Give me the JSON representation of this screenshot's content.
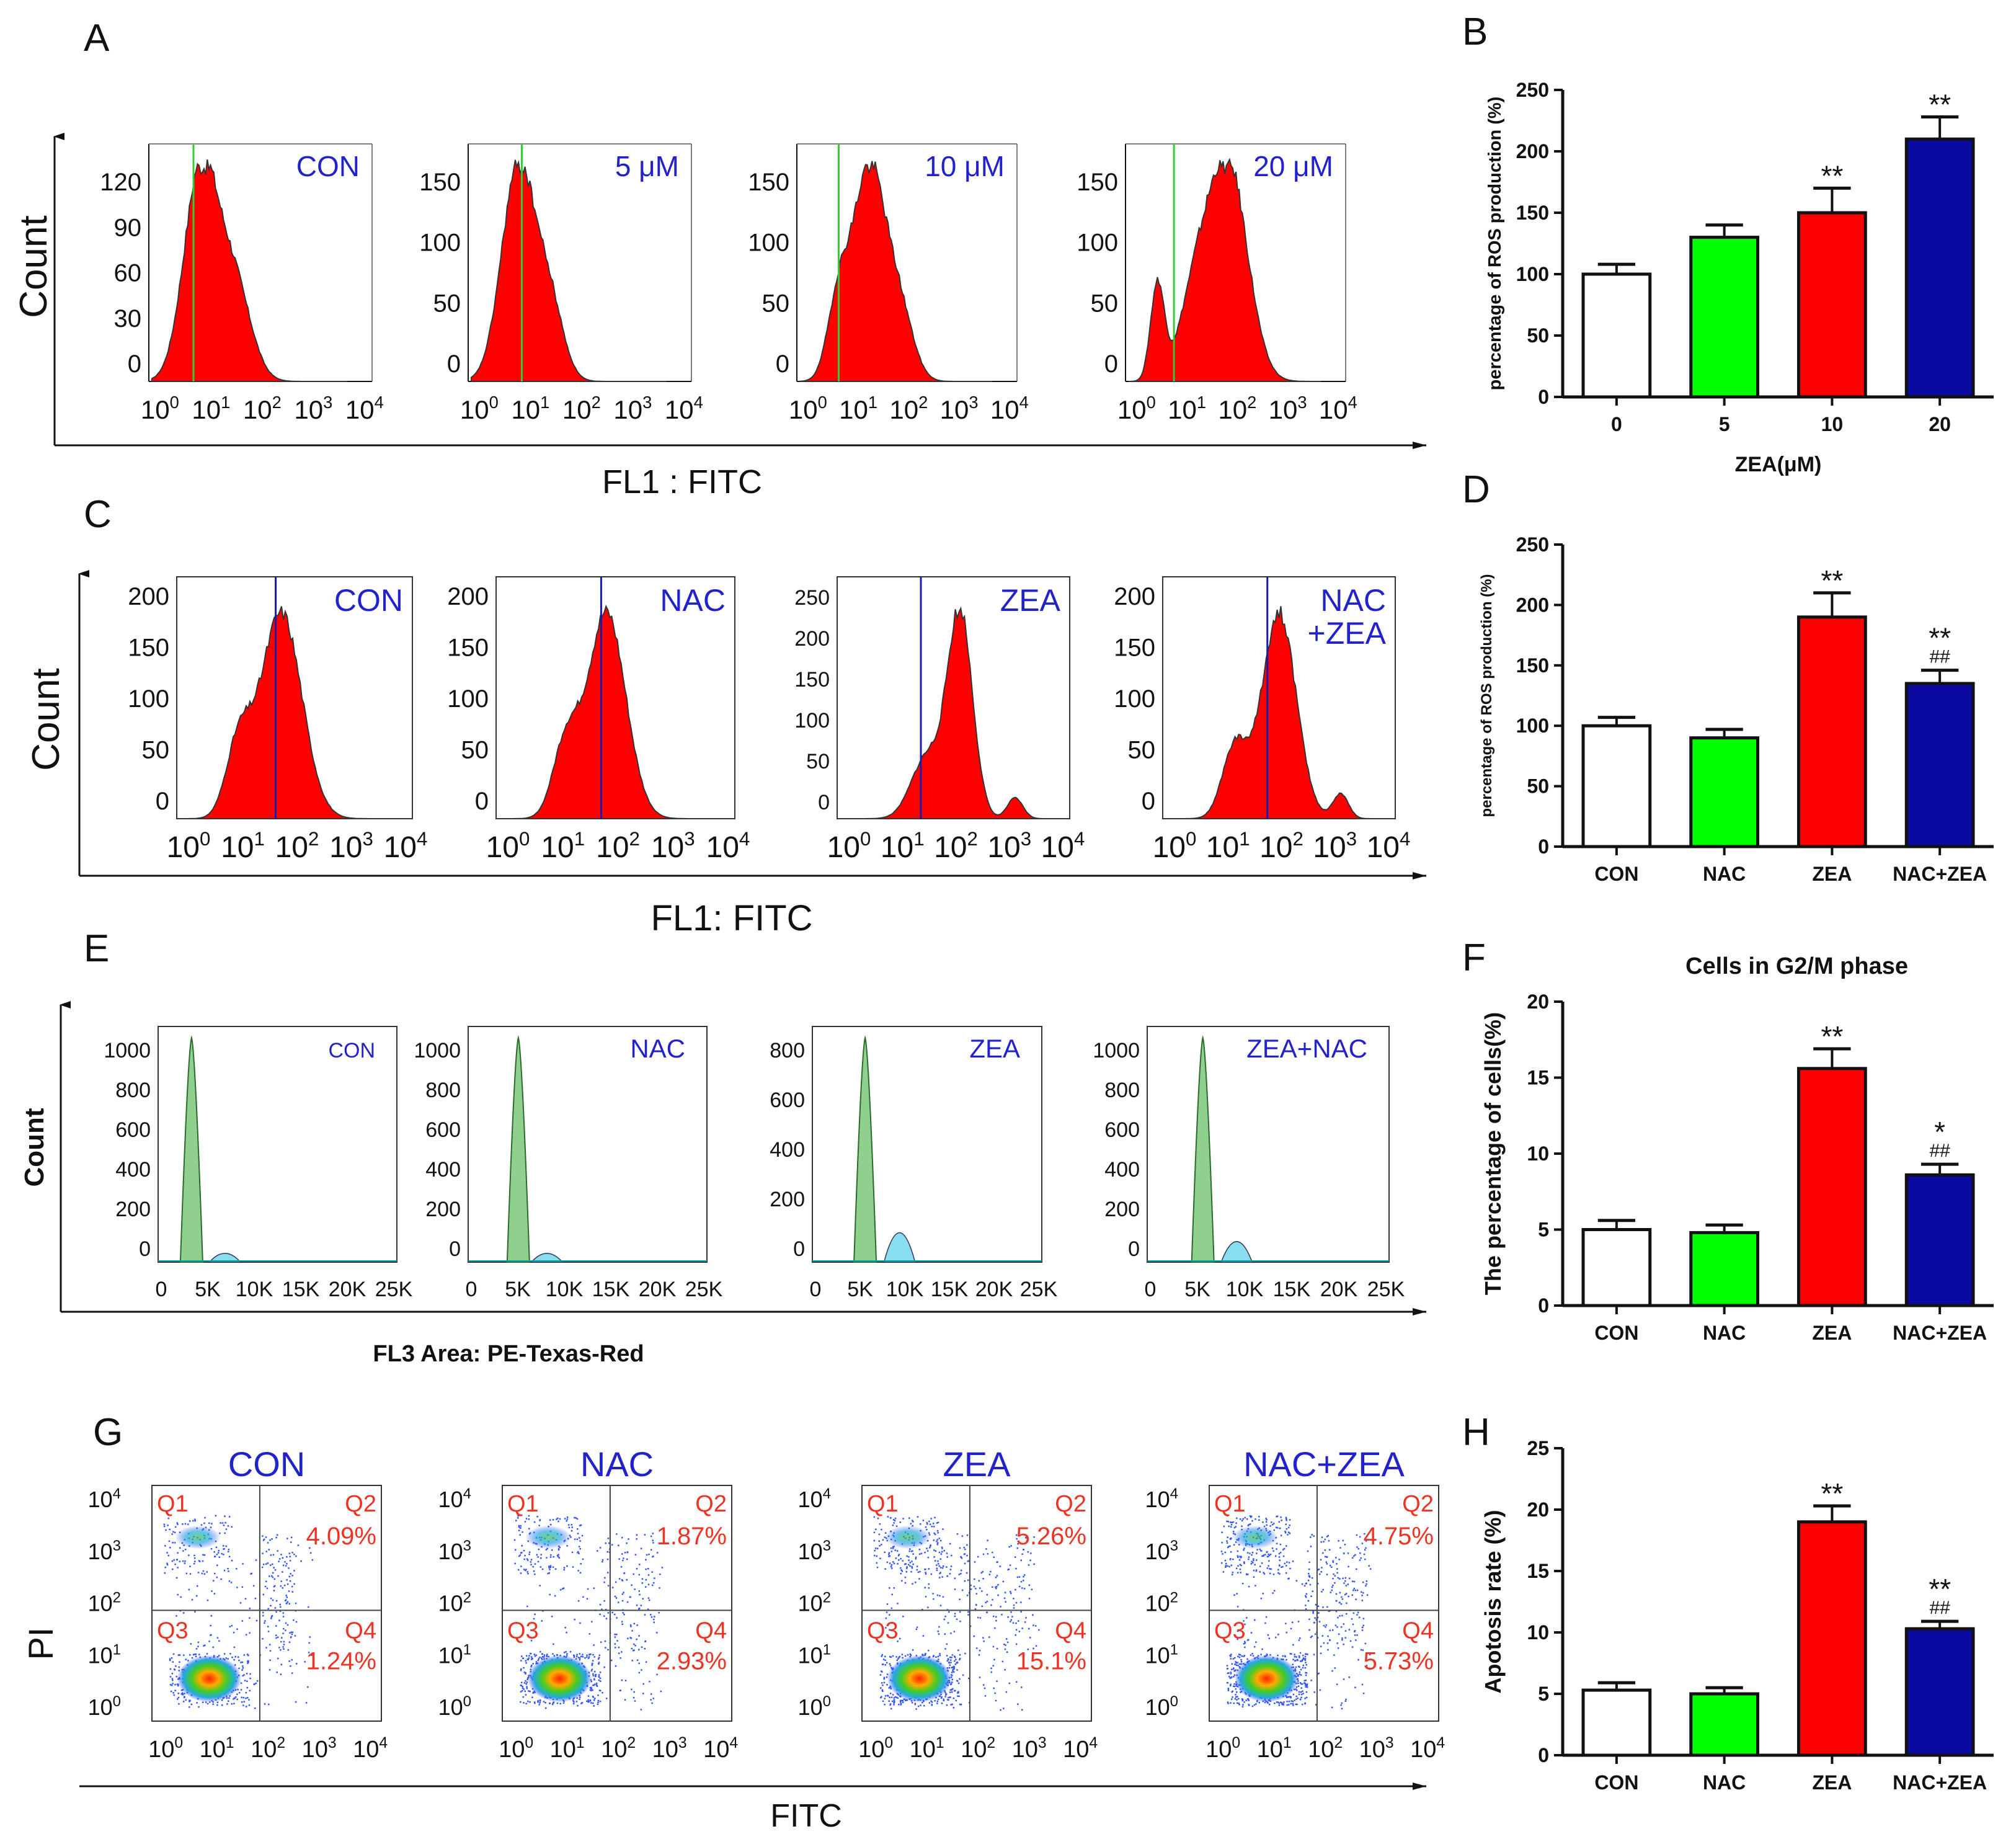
{
  "colors": {
    "fill_red": "#ff0000",
    "green_line": "#33cc33",
    "blue_line": "#1a1aaa",
    "bar_white": "#ffffff",
    "bar_green": "#00ff00",
    "bar_red": "#ff0000",
    "bar_blue": "#0a0aa0",
    "label_blue": "#2222cc",
    "label_red": "#ee3322",
    "cycle_green": "#8fd08f",
    "cycle_cyan": "#88ddee"
  },
  "panels": {
    "A": {
      "letter": "A",
      "y_axis": "Count",
      "x_axis": "FL1 : FITC",
      "plots": [
        {
          "label": "CON",
          "yticks": [
            "120",
            "90",
            "60",
            "30",
            "0"
          ]
        },
        {
          "label": "5 μM",
          "yticks": [
            "150",
            "100",
            "50",
            "0"
          ]
        },
        {
          "label": "10 μM",
          "yticks": [
            "150",
            "100",
            "50",
            "0"
          ]
        },
        {
          "label": "20 μM",
          "yticks": [
            "150",
            "100",
            "50",
            "0"
          ]
        }
      ]
    },
    "C": {
      "letter": "C",
      "y_axis": "Count",
      "x_axis": "FL1: FITC",
      "plots": [
        {
          "label": "CON",
          "label2": "",
          "yticks": [
            "200",
            "150",
            "100",
            "50",
            "0"
          ]
        },
        {
          "label": "NAC",
          "label2": "",
          "yticks": [
            "200",
            "150",
            "100",
            "50",
            "0"
          ]
        },
        {
          "label": "ZEA",
          "label2": "",
          "yticks": [
            "250",
            "200",
            "150",
            "100",
            "50",
            "0"
          ]
        },
        {
          "label": "NAC",
          "label2": "+ZEA",
          "yticks": [
            "200",
            "150",
            "100",
            "50",
            "0"
          ]
        }
      ]
    },
    "E": {
      "letter": "E",
      "y_axis": "Count",
      "x_axis": "FL3 Area: PE-Texas-Red",
      "xticks": [
        "0",
        "5K",
        "10K",
        "15K",
        "20K",
        "25K"
      ],
      "plots": [
        {
          "label": "CON",
          "yticks": [
            "1000",
            "800",
            "600",
            "400",
            "200",
            "0"
          ]
        },
        {
          "label": "NAC",
          "yticks": [
            "1000",
            "800",
            "600",
            "400",
            "200",
            "0"
          ]
        },
        {
          "label": "ZEA",
          "yticks": [
            "800",
            "600",
            "400",
            "200",
            "0"
          ]
        },
        {
          "label": "ZEA+NAC",
          "yticks": [
            "1000",
            "800",
            "600",
            "400",
            "200",
            "0"
          ]
        }
      ]
    },
    "G": {
      "letter": "G",
      "y_axis": "PI",
      "x_axis": "FITC",
      "plots": [
        {
          "label": "CON",
          "q2": "4.09%",
          "q4": "1.24%"
        },
        {
          "label": "NAC",
          "q2": "1.87%",
          "q4": "2.93%"
        },
        {
          "label": "ZEA",
          "q2": "5.26%",
          "q4": "15.1%"
        },
        {
          "label": "NAC+ZEA",
          "q2": "4.75%",
          "q4": "5.73%"
        }
      ],
      "quadrants": [
        "Q1",
        "Q2",
        "Q3",
        "Q4"
      ]
    },
    "log_ticks": [
      "10",
      "0",
      "1",
      "2",
      "3",
      "4"
    ]
  },
  "chart_data": [
    {
      "id": "B",
      "type": "bar",
      "title": "",
      "ylabel": "percentage of ROS production (%)",
      "xlabel": "ZEA(μM)",
      "categories": [
        "0",
        "5",
        "10",
        "20"
      ],
      "values": [
        100,
        130,
        150,
        210
      ],
      "errors": [
        8,
        10,
        20,
        18
      ],
      "annotations": [
        "",
        "",
        "**",
        "**"
      ],
      "annotations2": [
        "",
        "",
        "",
        ""
      ],
      "ylim": [
        0,
        250
      ],
      "yticks": [
        0,
        50,
        100,
        150,
        200,
        250
      ]
    },
    {
      "id": "D",
      "type": "bar",
      "title": "",
      "ylabel": "percentage of ROS production (%)",
      "xlabel": "",
      "categories": [
        "CON",
        "NAC",
        "ZEA",
        "NAC+ZEA"
      ],
      "values": [
        100,
        90,
        190,
        135
      ],
      "errors": [
        7,
        7,
        20,
        11
      ],
      "annotations": [
        "",
        "",
        "**",
        "**"
      ],
      "annotations2": [
        "",
        "",
        "",
        "##"
      ],
      "ylim": [
        0,
        250
      ],
      "yticks": [
        0,
        50,
        100,
        150,
        200,
        250
      ]
    },
    {
      "id": "F",
      "type": "bar",
      "title": "Cells in G2/M phase",
      "ylabel": "The percentage of cells(%)",
      "xlabel": "",
      "categories": [
        "CON",
        "NAC",
        "ZEA",
        "NAC+ZEA"
      ],
      "values": [
        5.0,
        4.8,
        15.6,
        8.6
      ],
      "errors": [
        0.6,
        0.5,
        1.3,
        0.7
      ],
      "annotations": [
        "",
        "",
        "**",
        "*"
      ],
      "annotations2": [
        "",
        "",
        "",
        "##"
      ],
      "ylim": [
        0,
        20
      ],
      "yticks": [
        0,
        5,
        10,
        15,
        20
      ]
    },
    {
      "id": "H",
      "type": "bar",
      "title": "",
      "ylabel": "Apotosis rate (%)",
      "xlabel": "",
      "categories": [
        "CON",
        "NAC",
        "ZEA",
        "NAC+ZEA"
      ],
      "values": [
        5.3,
        5.0,
        19.0,
        10.3
      ],
      "errors": [
        0.6,
        0.5,
        1.3,
        0.6
      ],
      "annotations": [
        "",
        "",
        "**",
        "**"
      ],
      "annotations2": [
        "",
        "",
        "",
        "##"
      ],
      "ylim": [
        0,
        25
      ],
      "yticks": [
        0,
        5,
        10,
        15,
        20,
        25
      ]
    }
  ],
  "bar_letters": {
    "B": "B",
    "D": "D",
    "F": "F",
    "H": "H"
  }
}
